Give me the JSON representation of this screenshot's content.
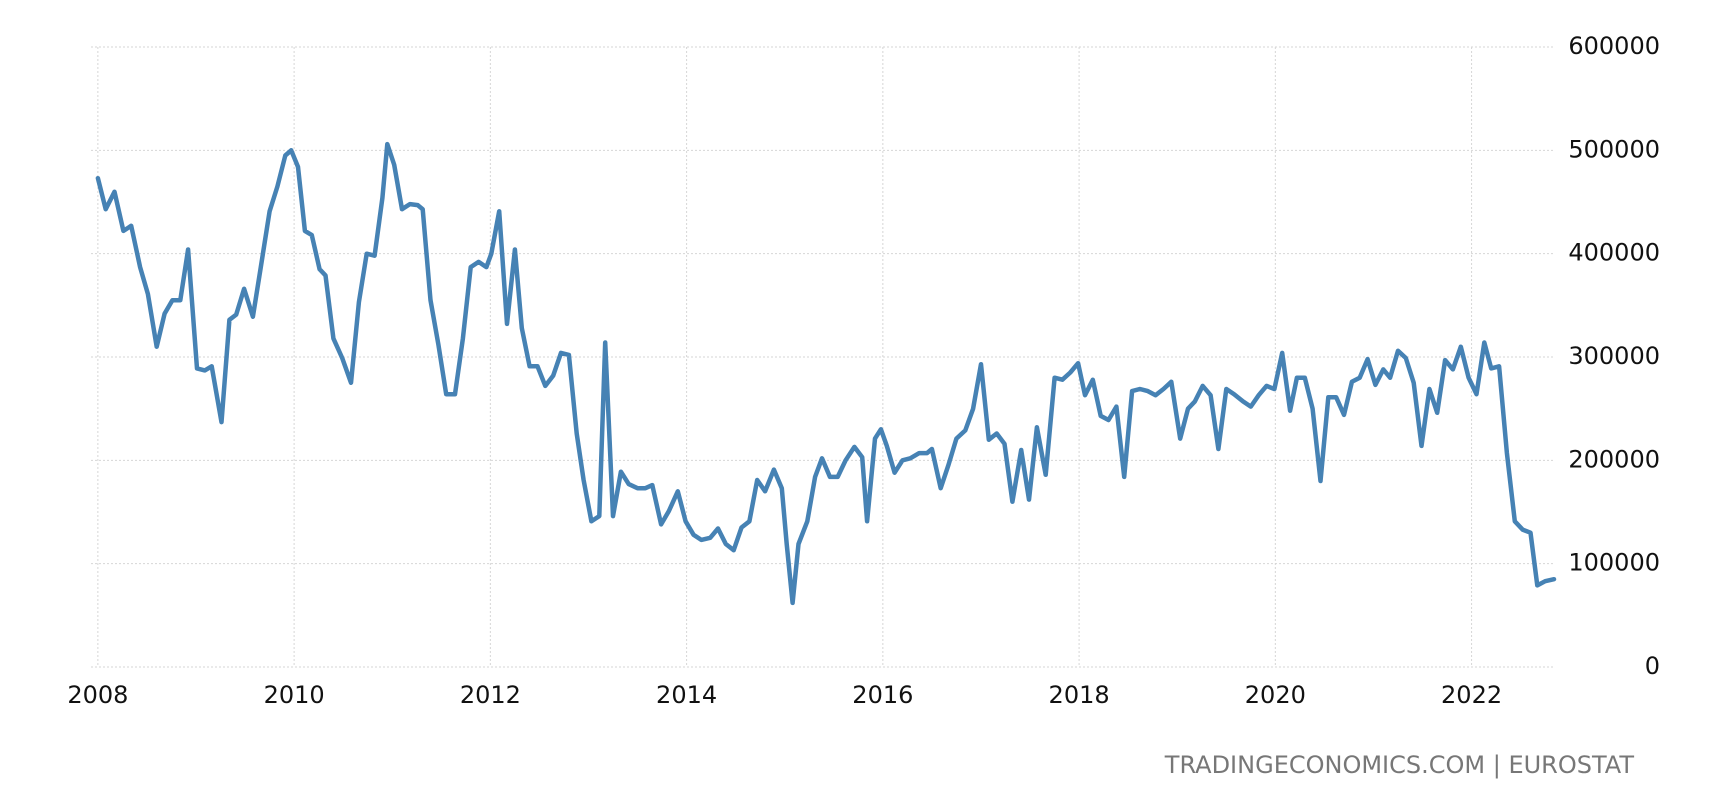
{
  "chart_data": {
    "type": "line",
    "source": "TRADINGECONOMICS.COM | EUROSTAT",
    "x": [
      2008.0,
      2008.08,
      2008.17,
      2008.26,
      2008.34,
      2008.43,
      2008.51,
      2008.6,
      2008.68,
      2008.76,
      2008.84,
      2008.92,
      2009.01,
      2009.09,
      2009.16,
      2009.26,
      2009.34,
      2009.41,
      2009.49,
      2009.58,
      2009.66,
      2009.75,
      2009.83,
      2009.91,
      2009.97,
      2010.04,
      2010.11,
      2010.18,
      2010.26,
      2010.32,
      2010.4,
      2010.49,
      2010.58,
      2010.66,
      2010.74,
      2010.82,
      2010.9,
      2010.95,
      2011.02,
      2011.1,
      2011.18,
      2011.26,
      2011.31,
      2011.39,
      2011.47,
      2011.55,
      2011.64,
      2011.72,
      2011.8,
      2011.88,
      2011.96,
      2012.01,
      2012.09,
      2012.17,
      2012.25,
      2012.32,
      2012.4,
      2012.48,
      2012.56,
      2012.64,
      2012.72,
      2012.8,
      2012.88,
      2012.95,
      2013.03,
      2013.11,
      2013.17,
      2013.25,
      2013.33,
      2013.41,
      2013.5,
      2013.58,
      2013.65,
      2013.74,
      2013.82,
      2013.91,
      2013.99,
      2014.07,
      2014.15,
      2014.24,
      2014.32,
      2014.4,
      2014.48,
      2014.56,
      2014.64,
      2014.72,
      2014.8,
      2014.89,
      2014.97,
      2015.02,
      2015.08,
      2015.14,
      2015.23,
      2015.31,
      2015.38,
      2015.46,
      2015.54,
      2015.62,
      2015.71,
      2015.79,
      2015.84,
      2015.92,
      2015.98,
      2016.04,
      2016.12,
      2016.2,
      2016.28,
      2016.37,
      2016.45,
      2016.5,
      2016.59,
      2016.67,
      2016.75,
      2016.84,
      2016.92,
      2017.0,
      2017.08,
      2017.16,
      2017.24,
      2017.32,
      2017.41,
      2017.49,
      2017.57,
      2017.66,
      2017.75,
      2017.83,
      2017.91,
      2017.99,
      2018.06,
      2018.14,
      2018.22,
      2018.3,
      2018.38,
      2018.46,
      2018.54,
      2018.62,
      2018.7,
      2018.78,
      2018.86,
      2018.94,
      2019.03,
      2019.11,
      2019.18,
      2019.26,
      2019.34,
      2019.42,
      2019.5,
      2019.58,
      2019.67,
      2019.75,
      2019.83,
      2019.91,
      2019.99,
      2020.07,
      2020.15,
      2020.22,
      2020.3,
      2020.38,
      2020.46,
      2020.54,
      2020.62,
      2020.7,
      2020.78,
      2020.86,
      2020.94,
      2021.02,
      2021.1,
      2021.17,
      2021.25,
      2021.33,
      2021.41,
      2021.49,
      2021.57,
      2021.65,
      2021.73,
      2021.81,
      2021.89,
      2021.97,
      2022.05,
      2022.13,
      2022.2,
      2022.28,
      2022.36,
      2022.44,
      2022.52,
      2022.6,
      2022.67,
      2022.75,
      2022.84
    ],
    "values": [
      473000,
      443000,
      460000,
      422000,
      427000,
      387000,
      361000,
      310000,
      342000,
      355000,
      355000,
      404000,
      289000,
      287000,
      291000,
      237000,
      336000,
      341000,
      366000,
      339000,
      387000,
      441000,
      465000,
      495000,
      500000,
      484000,
      422000,
      418000,
      385000,
      379000,
      318000,
      299000,
      275000,
      353000,
      400000,
      398000,
      454000,
      506000,
      486000,
      443000,
      448000,
      447000,
      443000,
      355000,
      312000,
      264000,
      264000,
      318000,
      387000,
      392000,
      387000,
      400000,
      441000,
      332000,
      404000,
      328000,
      291000,
      291000,
      272000,
      282000,
      304000,
      302000,
      226000,
      181000,
      141000,
      146000,
      314000,
      146000,
      189000,
      177000,
      173000,
      173000,
      176000,
      138000,
      151000,
      170000,
      141000,
      128000,
      123000,
      125000,
      134000,
      119000,
      113000,
      135000,
      141000,
      181000,
      170000,
      191000,
      173000,
      119000,
      62000,
      119000,
      141000,
      184000,
      202000,
      184000,
      184000,
      200000,
      213000,
      203000,
      141000,
      221000,
      230000,
      214000,
      188000,
      200000,
      202000,
      207000,
      207000,
      211000,
      173000,
      196000,
      221000,
      229000,
      250000,
      293000,
      220000,
      226000,
      216000,
      160000,
      210000,
      162000,
      232000,
      186000,
      280000,
      278000,
      285000,
      294000,
      263000,
      278000,
      243000,
      239000,
      252000,
      184000,
      267000,
      269000,
      267000,
      263000,
      269000,
      276000,
      221000,
      250000,
      257000,
      272000,
      263000,
      211000,
      269000,
      264000,
      257000,
      252000,
      263000,
      272000,
      269000,
      304000,
      248000,
      280000,
      280000,
      250000,
      180000,
      261000,
      261000,
      244000,
      276000,
      280000,
      298000,
      273000,
      288000,
      280000,
      306000,
      299000,
      275000,
      214000,
      269000,
      246000,
      297000,
      288000,
      310000,
      280000,
      264000,
      314000,
      289000,
      291000,
      207000,
      141000,
      133000,
      130000,
      79000,
      83000,
      85000
    ],
    "color": "#4682b4",
    "xlim": [
      2007.93,
      2022.84
    ],
    "xticks": [
      2008,
      2010,
      2012,
      2014,
      2016,
      2018,
      2020,
      2022
    ],
    "ylim": [
      0,
      600000
    ],
    "yticks": [
      0,
      100000,
      200000,
      300000,
      400000,
      500000,
      600000
    ],
    "grid": true
  }
}
